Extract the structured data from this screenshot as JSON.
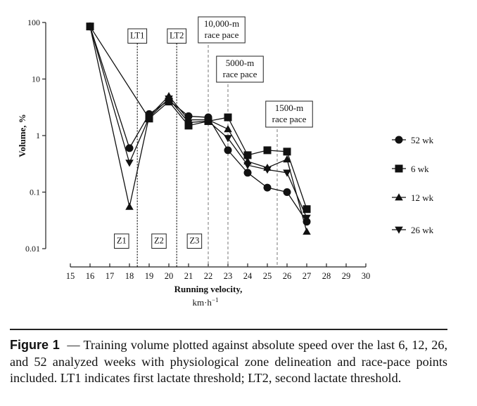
{
  "chart_data": {
    "type": "line",
    "y_scale": "log",
    "xlabel": "Running velocity,",
    "xlabel_unit": "km·h",
    "xlabel_unit_exp": "−1",
    "ylabel": "Volume, %",
    "xlim": [
      15,
      30
    ],
    "ylim": [
      0.01,
      100
    ],
    "x_ticks": [
      15,
      16,
      17,
      18,
      19,
      20,
      21,
      22,
      23,
      24,
      25,
      26,
      27,
      28,
      29,
      30
    ],
    "x_tick_labels": [
      "15",
      "16",
      "17",
      "18",
      "19",
      "20",
      "21",
      "22",
      "23",
      "24",
      "25",
      "26",
      "27",
      "28",
      "29",
      "30"
    ],
    "y_ticks": [
      0.01,
      0.1,
      1,
      10,
      100
    ],
    "y_tick_labels": [
      "0.01",
      "0.1",
      "1",
      "10",
      "100"
    ],
    "series": [
      {
        "name": "52 wk",
        "marker": "circle",
        "x": [
          16,
          18,
          19,
          20,
          21,
          22,
          23,
          24,
          25,
          26,
          27
        ],
        "values": [
          85,
          0.6,
          2.4,
          4.2,
          2.2,
          2.1,
          0.55,
          0.22,
          0.12,
          0.1,
          0.03
        ]
      },
      {
        "name": "6 wk",
        "marker": "square",
        "x": [
          16,
          19,
          20,
          21,
          22,
          23,
          24,
          25,
          26,
          27
        ],
        "values": [
          85,
          2.0,
          4.0,
          1.5,
          1.8,
          2.1,
          0.45,
          0.55,
          0.52,
          0.05
        ]
      },
      {
        "name": "12 wk",
        "marker": "triangle-up",
        "x": [
          16,
          18,
          19,
          20,
          21,
          22,
          23,
          24,
          25,
          26,
          27
        ],
        "values": [
          85,
          0.055,
          2.2,
          5.0,
          1.9,
          1.9,
          1.3,
          0.35,
          0.27,
          0.38,
          0.02
        ]
      },
      {
        "name": "26 wk",
        "marker": "triangle-down",
        "x": [
          16,
          18,
          19,
          20,
          21,
          22,
          23,
          24,
          25,
          26,
          27
        ],
        "values": [
          85,
          0.33,
          2.1,
          4.5,
          1.7,
          1.8,
          0.9,
          0.3,
          0.25,
          0.22,
          0.035
        ]
      }
    ],
    "threshold_lines": [
      {
        "label": "LT1",
        "x": 18.4
      },
      {
        "label": "LT2",
        "x": 20.4
      }
    ],
    "race_pace_lines": [
      {
        "label_lines": [
          "10,000-m",
          "race pace"
        ],
        "x": 22.0
      },
      {
        "label_lines": [
          "5000-m",
          "race pace"
        ],
        "x": 23.0
      },
      {
        "label_lines": [
          "1500-m",
          "race pace"
        ],
        "x": 25.5
      }
    ],
    "zone_labels": [
      {
        "label": "Z1",
        "x": 17.6
      },
      {
        "label": "Z2",
        "x": 19.5
      },
      {
        "label": "Z3",
        "x": 21.3
      }
    ],
    "legend_placement": "right"
  },
  "caption": {
    "figure_label": "Figure 1",
    "text": "— Training volume plotted against absolute speed over the last 6, 12, 26, and 52 analyzed weeks with physiological zone delineation and race-pace points included. LT1 indicates first lactate threshold; LT2, second lactate threshold."
  }
}
